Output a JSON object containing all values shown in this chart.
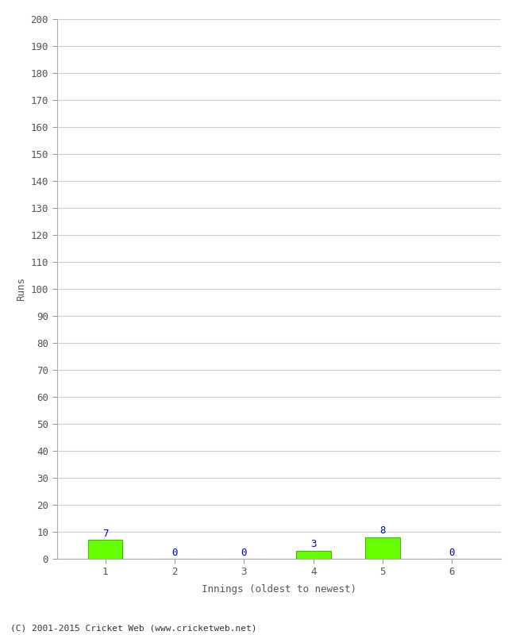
{
  "values": [
    7,
    0,
    0,
    3,
    8,
    0
  ],
  "categories": [
    "1",
    "2",
    "3",
    "4",
    "5",
    "6"
  ],
  "bar_color": "#66ff00",
  "bar_edge_color": "#44bb00",
  "label_color": "#0000cc",
  "ylabel": "Runs",
  "xlabel": "Innings (oldest to newest)",
  "ylim": [
    0,
    200
  ],
  "yticks": [
    0,
    10,
    20,
    30,
    40,
    50,
    60,
    70,
    80,
    90,
    100,
    110,
    120,
    130,
    140,
    150,
    160,
    170,
    180,
    190,
    200
  ],
  "footer": "(C) 2001-2015 Cricket Web (www.cricketweb.net)",
  "background_color": "#ffffff",
  "grid_color": "#cccccc",
  "tick_color": "#999999",
  "spine_color": "#aaaaaa"
}
